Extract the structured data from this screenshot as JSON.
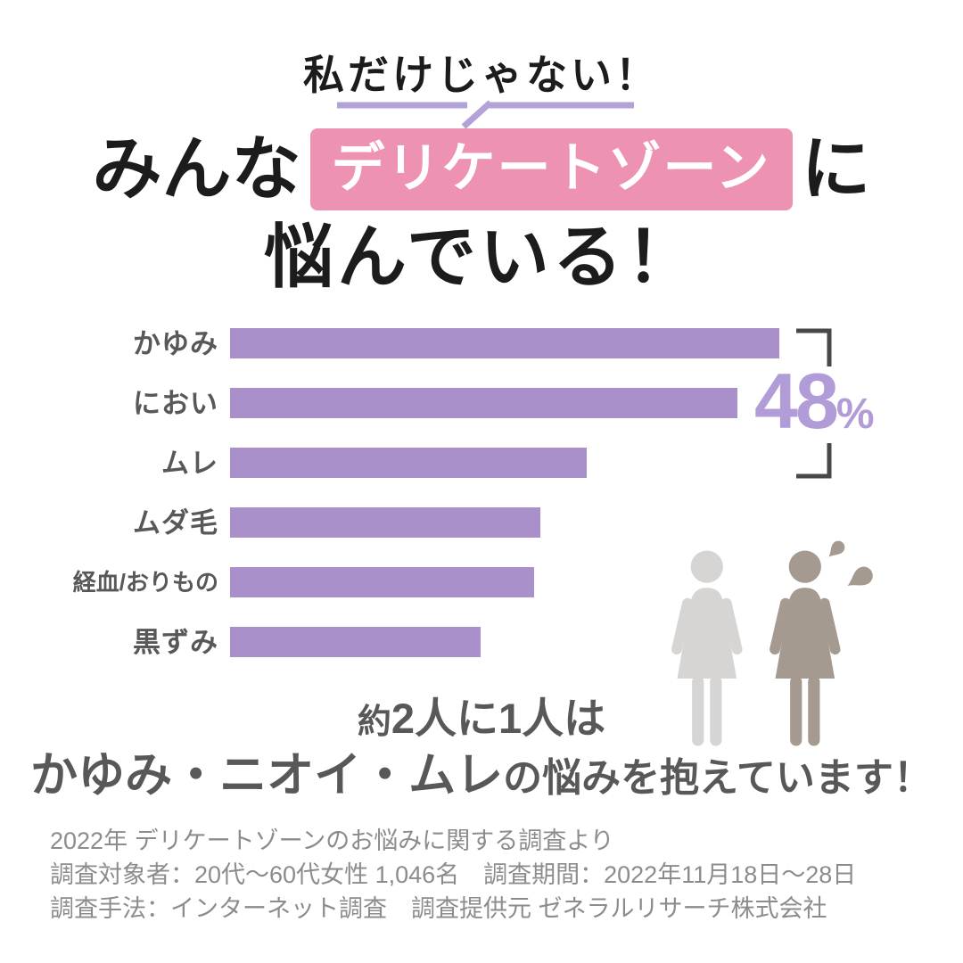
{
  "tagline": "私だけじゃない！",
  "title": {
    "pre": "みんな",
    "highlight": "デリケートゾーン",
    "post": "に",
    "line2": "悩んでいる！"
  },
  "callout": {
    "number": "48",
    "unit": "%"
  },
  "chart_data": {
    "type": "bar",
    "orientation": "horizontal",
    "title": "みんなデリケートゾーンに悩んでいる！",
    "categories": [
      "かゆみ",
      "におい",
      "ムレ",
      "ムダ毛",
      "経血/おりもの",
      "黒ずみ"
    ],
    "values": [
      48,
      44.3,
      31.2,
      27.1,
      26.6,
      21.9
    ],
    "unit": "%",
    "xlim": [
      0,
      48
    ],
    "grid": false,
    "legend": false,
    "value_labels_shown": false,
    "callout": {
      "text": "48%",
      "covers": [
        "かゆみ",
        "におい",
        "ムレ"
      ]
    }
  },
  "statement": {
    "line1_prefix": "約",
    "line1": "2人に1人は",
    "line2_emphasis": "かゆみ・ニオイ・ムレ",
    "line2_rest": "の悩みを抱えています！"
  },
  "footnotes": [
    "2022年 デリケートゾーンのお悩みに関する調査より",
    "調査対象者：20代～60代女性 1,046名　調査期間：2022年11月18日～28日",
    "調査手法：インターネット調査　調査提供元 ゼネラルリサーチ株式会社"
  ],
  "icons": {
    "left_person": "woman-pictogram-light",
    "right_person": "woman-pictogram-dark-with-sweat-drops"
  },
  "colors": {
    "ink": "#1c1c1c",
    "pink": "#ee92b3",
    "bar": "#aa90cb",
    "pct": "#b29cd8",
    "underline": "#b3a2d8",
    "label": "#595757",
    "footer": "#8c8c8c",
    "bracket": "#484848",
    "personLight": "#d7d5d4",
    "personDark": "#a49a90"
  }
}
